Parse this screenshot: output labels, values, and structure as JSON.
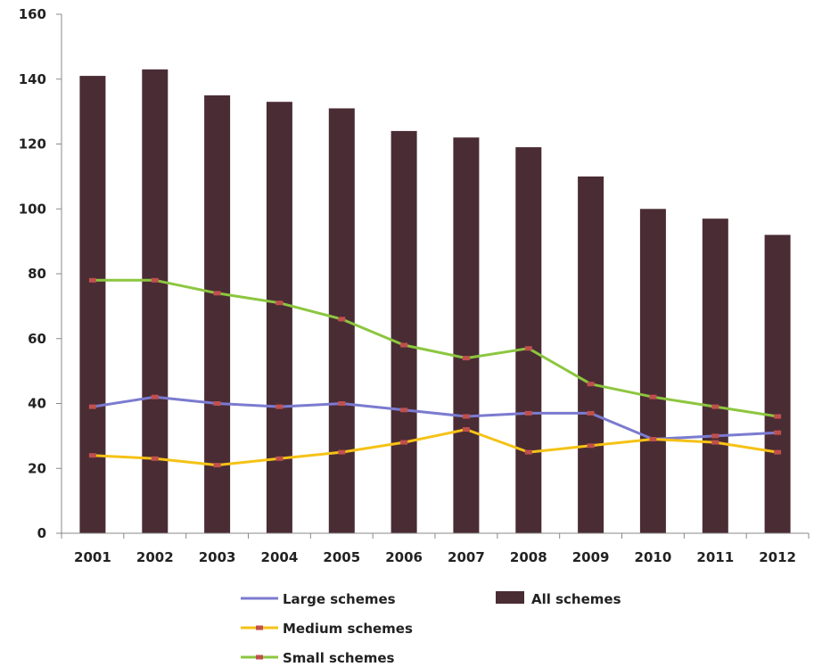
{
  "chart_data": {
    "type": "bar",
    "categories": [
      "2001",
      "2002",
      "2003",
      "2004",
      "2005",
      "2006",
      "2007",
      "2008",
      "2009",
      "2010",
      "2011",
      "2012"
    ],
    "ylim": [
      0,
      160
    ],
    "yticks": [
      0,
      20,
      40,
      60,
      80,
      100,
      120,
      140,
      160
    ],
    "grid": false,
    "legend_position": "bottom",
    "title": "",
    "xlabel": "",
    "ylabel": "",
    "series": [
      {
        "name": "All schemes",
        "type": "bar",
        "color": "#4a2c34",
        "values": [
          141,
          143,
          135,
          133,
          131,
          124,
          122,
          119,
          110,
          100,
          97,
          92
        ]
      },
      {
        "name": "Large schemes",
        "type": "line",
        "color": "#7b7bd0",
        "values": [
          39,
          42,
          40,
          39,
          40,
          38,
          36,
          37,
          37,
          29,
          30,
          31
        ]
      },
      {
        "name": "Medium schemes",
        "type": "line",
        "color": "#f5c216",
        "values": [
          24,
          23,
          21,
          23,
          25,
          28,
          32,
          25,
          27,
          29,
          28,
          25
        ]
      },
      {
        "name": "Small schemes",
        "type": "line",
        "color": "#8cc63f",
        "values": [
          78,
          78,
          74,
          71,
          66,
          58,
          54,
          57,
          46,
          42,
          39,
          36
        ]
      }
    ],
    "marker_color": "#c0504d"
  }
}
